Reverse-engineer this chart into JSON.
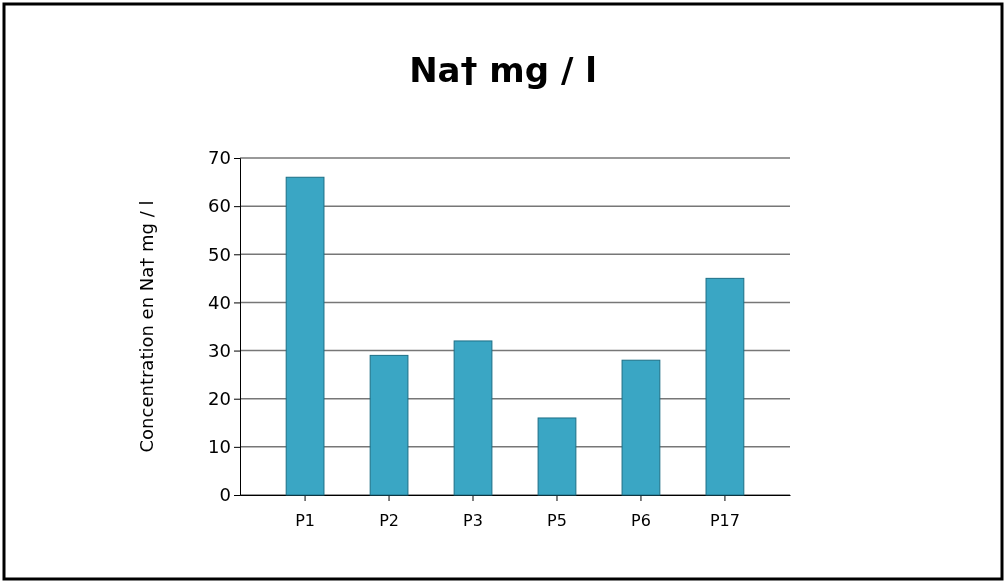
{
  "chart_data": {
    "type": "bar",
    "title": "Na† mg / l",
    "ylabel": "Concentration en Na† mg / l",
    "categories": [
      "P1",
      "P2",
      "P3",
      "P5",
      "P6",
      "P17"
    ],
    "values": [
      66,
      29,
      32,
      16,
      28,
      45
    ],
    "color": "#3aa6c4",
    "ylim": [
      0,
      70
    ],
    "yticks": [
      0,
      10,
      20,
      30,
      40,
      50,
      60,
      70
    ],
    "grid": "y"
  }
}
